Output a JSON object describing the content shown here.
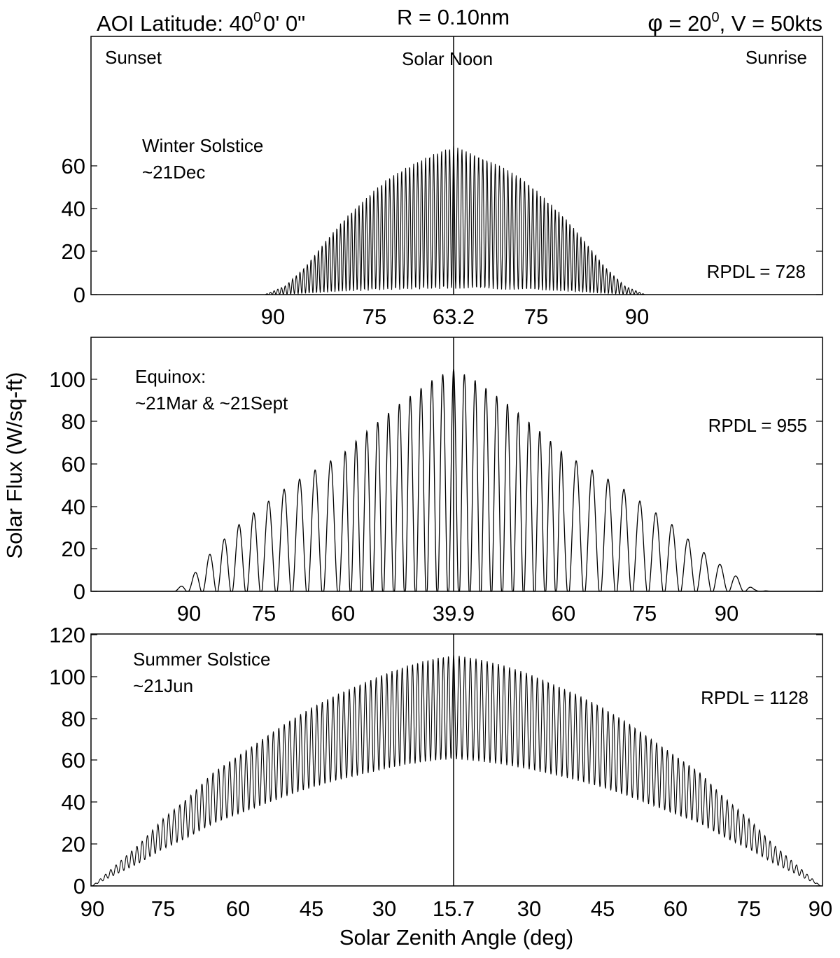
{
  "header": {
    "aoi": "AOI Latitude: 40",
    "aoi_deg": "0",
    "aoi_rest": "0' 0\"",
    "range": "R = 0.10nm",
    "phi_sym": "φ",
    "phi_eq": " = 20",
    "phi_deg": "0",
    "phi_rest": ", V = 50kts"
  },
  "labels": {
    "sunset": "Sunset",
    "solar_noon": "Solar Noon",
    "sunrise": "Sunrise",
    "ylabel": "Solar Flux (W/sq-ft)",
    "xlabel": "Solar Zenith Angle (deg)"
  },
  "colors": {
    "line": "#000000",
    "background": "#ffffff"
  },
  "chart_data": [
    {
      "type": "line",
      "panel": "winter",
      "season": "Winter Solstice",
      "date": "~21Dec",
      "rpdl": "RPDL = 728",
      "noon_zenith": 63.2,
      "ylim": [
        0,
        120
      ],
      "yticks": [
        "0",
        "20",
        "40",
        "60"
      ],
      "xticks": [
        "90",
        "75",
        "63.2",
        "75",
        "90"
      ],
      "envelope": [
        [
          -9.0,
          0
        ],
        [
          -8.0,
          4
        ],
        [
          -7.0,
          13
        ],
        [
          -6.0,
          25
        ],
        [
          -5.0,
          36
        ],
        [
          -4.0,
          45
        ],
        [
          -3.0,
          54
        ],
        [
          -2.0,
          60
        ],
        [
          -1.0,
          65
        ],
        [
          0.0,
          69
        ],
        [
          1.0,
          65
        ],
        [
          2.0,
          60
        ],
        [
          3.0,
          54
        ],
        [
          4.0,
          45
        ],
        [
          5.0,
          36
        ],
        [
          6.0,
          25
        ],
        [
          7.0,
          13
        ],
        [
          8.0,
          4
        ],
        [
          9.0,
          0
        ]
      ],
      "oscillation_min_fraction": 0.04,
      "cycles_per_hour": 5.5
    },
    {
      "type": "line",
      "panel": "equinox",
      "season": "Equinox:",
      "date": "~21Mar & ~21Sept",
      "rpdl": "RPDL = 955",
      "noon_zenith": 39.9,
      "ylim": [
        0,
        120
      ],
      "yticks": [
        "0",
        "20",
        "40",
        "60",
        "80",
        "100"
      ],
      "xticks": [
        "90",
        "75",
        "60",
        "39.9",
        "60",
        "75",
        "90"
      ],
      "envelope": [
        [
          -6.3,
          0
        ],
        [
          -6.0,
          5
        ],
        [
          -5.5,
          19
        ],
        [
          -5.0,
          30
        ],
        [
          -4.5,
          39
        ],
        [
          -4.0,
          48
        ],
        [
          -3.5,
          55
        ],
        [
          -3.0,
          62
        ],
        [
          -2.5,
          70
        ],
        [
          -2.0,
          77
        ],
        [
          -1.5,
          84
        ],
        [
          -1.0,
          90
        ],
        [
          -0.5,
          96
        ],
        [
          0.0,
          100
        ],
        [
          0.5,
          96
        ],
        [
          1.0,
          90
        ],
        [
          1.5,
          84
        ],
        [
          2.0,
          77
        ],
        [
          2.5,
          70
        ],
        [
          3.0,
          62
        ],
        [
          3.5,
          55
        ],
        [
          4.0,
          48
        ],
        [
          4.5,
          39
        ],
        [
          5.0,
          30
        ],
        [
          5.5,
          19
        ],
        [
          6.0,
          10
        ],
        [
          6.5,
          1
        ],
        [
          6.8,
          0
        ]
      ],
      "oscillation_min_fraction": 0.0,
      "cycles_per_hour": 3.4
    },
    {
      "type": "line",
      "panel": "summer",
      "season": "Summer Solstice",
      "date": "~21Jun",
      "rpdl": "RPDL = 1128",
      "noon_zenith": 15.7,
      "ylim": [
        0,
        120
      ],
      "yticks": [
        "0",
        "20",
        "40",
        "60",
        "80",
        "100",
        "120"
      ],
      "xticks": [
        "90",
        "75",
        "60",
        "45",
        "30",
        "15.7",
        "30",
        "45",
        "60",
        "75",
        "90"
      ],
      "envelope": [
        [
          -7.5,
          0
        ],
        [
          -7.0,
          10
        ],
        [
          -6.5,
          20
        ],
        [
          -6.0,
          32
        ],
        [
          -5.5,
          42
        ],
        [
          -5.0,
          54
        ],
        [
          -4.5,
          62
        ],
        [
          -4.0,
          70
        ],
        [
          -3.5,
          78
        ],
        [
          -3.0,
          85
        ],
        [
          -2.5,
          91
        ],
        [
          -2.0,
          96
        ],
        [
          -1.5,
          101
        ],
        [
          -1.0,
          105
        ],
        [
          -0.5,
          108
        ],
        [
          0.0,
          110
        ],
        [
          0.5,
          108
        ],
        [
          1.0,
          105
        ],
        [
          1.5,
          101
        ],
        [
          2.0,
          96
        ],
        [
          2.5,
          91
        ],
        [
          3.0,
          85
        ],
        [
          3.5,
          78
        ],
        [
          4.0,
          70
        ],
        [
          4.5,
          62
        ],
        [
          5.0,
          54
        ],
        [
          5.5,
          42
        ],
        [
          6.0,
          32
        ],
        [
          6.5,
          20
        ],
        [
          7.0,
          10
        ],
        [
          7.5,
          0
        ]
      ],
      "oscillation_min_fraction": 0.55,
      "cycles_per_hour": 9.0
    }
  ]
}
